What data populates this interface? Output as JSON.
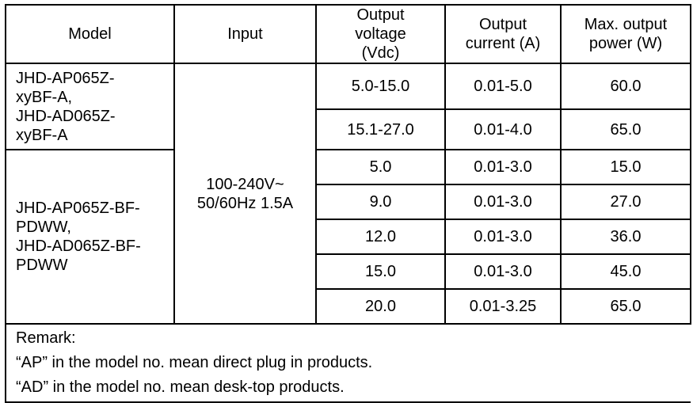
{
  "headers": [
    "Model",
    "Input",
    "Output voltage (Vdc)",
    "Output current (A)",
    "Max. output power (W)"
  ],
  "groups": [
    {
      "model": "JHD-AP065Z-xyBF-A, JHD-AD065Z-xyBF-A",
      "model_lines": [
        "JHD-AP065Z-",
        "xyBF-A,",
        "JHD-AD065Z-",
        "xyBF-A"
      ],
      "rows": [
        {
          "voltage": "5.0-15.0",
          "current": "0.01-5.0",
          "power": "60.0"
        },
        {
          "voltage": "15.1-27.0",
          "current": "0.01-4.0",
          "power": "65.0"
        }
      ]
    },
    {
      "model": "JHD-AP065Z-BF-PDWW, JHD-AD065Z-BF-PDWW",
      "model_lines": [
        "JHD-AP065Z-BF-",
        "PDWW,",
        "JHD-AD065Z-BF-",
        "PDWW"
      ],
      "rows": [
        {
          "voltage": "5.0",
          "current": "0.01-3.0",
          "power": "15.0"
        },
        {
          "voltage": "9.0",
          "current": "0.01-3.0",
          "power": "27.0"
        },
        {
          "voltage": "12.0",
          "current": "0.01-3.0",
          "power": "36.0"
        },
        {
          "voltage": "15.0",
          "current": "0.01-3.0",
          "power": "45.0"
        },
        {
          "voltage": "20.0",
          "current": "0.01-3.25",
          "power": "65.0"
        }
      ]
    }
  ],
  "input_lines": [
    "100-240V~",
    "50/60Hz 1.5A"
  ],
  "remark": {
    "title": "Remark:",
    "lines": [
      "“AP” in the model no. mean direct plug in products.",
      "“AD” in the model no. mean desk-top products."
    ]
  }
}
